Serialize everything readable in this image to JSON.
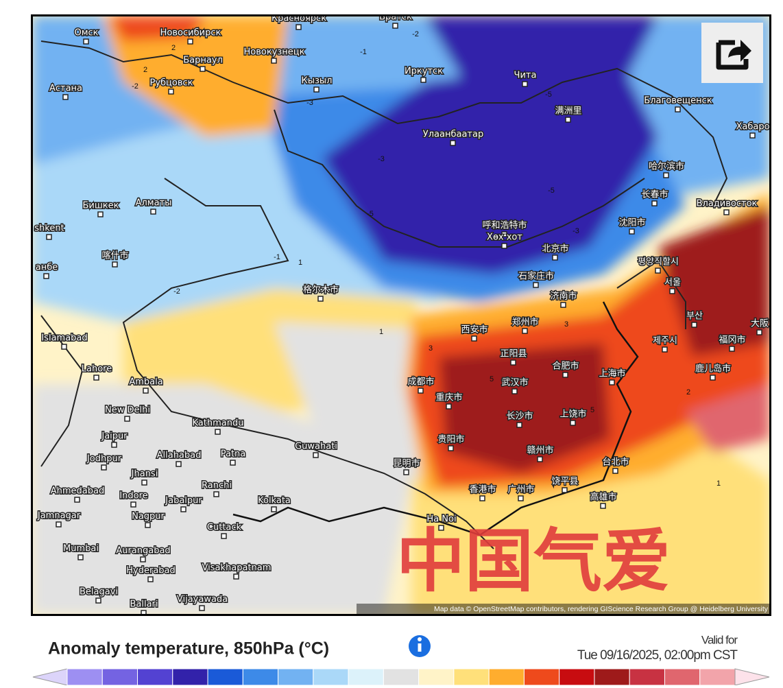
{
  "map": {
    "labels": [
      "Омск",
      "Новосибирск",
      "Красноярск",
      "Братск",
      "Барнаул",
      "Новокузнецк",
      "Иркутск",
      "Чита",
      "Астана",
      "Рубцовск",
      "Кызыл",
      "Благовещенск",
      "满洲里",
      "Улаанбаатар",
      "Хабаро",
      "哈尔滨市",
      "长春市",
      "Бишкек",
      "Алматы",
      "Владивосток",
      "shkent",
      "呼和浩特市",
      "Хөх хот",
      "沈阳市",
      "北京市",
      "喀什市",
      "анбе",
      "평양직할시",
      "石家庄市",
      "서울",
      "格尔木市",
      "济南市",
      "西安市",
      "郑州市",
      "부산",
      "大阪",
      "Islamabad",
      "제주시",
      "福冈市",
      "正阳县",
      "合肥市",
      "Lahore",
      "成都市",
      "武汉市",
      "上海市",
      "鹿儿岛市",
      "Ambala",
      "重庆市",
      "New Delhi",
      "长沙市",
      "上饶市",
      "Kathmandu",
      "贵阳市",
      "Jaipur",
      "Guwahati",
      "Allahabad",
      "Patna",
      "Jodhpur",
      "赣州市",
      "昆明市",
      "台北市",
      "Jhansi",
      "Ranchi",
      "广州市",
      "香港市",
      "饶平县",
      "Ahmedabad",
      "Indore",
      "Jabalpur",
      "Kolkata",
      "高雄市",
      "Jamnagar",
      "Nagpur",
      "Ha Noi",
      "Cuttack",
      "Mumbai",
      "Aurangabad",
      "Hyderabad",
      "Visakhapatnam",
      "Belagavi",
      "Vijayawada",
      "Ballari"
    ],
    "contour_labels": [
      -2,
      -1,
      2,
      -3,
      -2,
      -5,
      -5,
      -3,
      -1,
      1,
      -2,
      -5,
      -3,
      3,
      5,
      5,
      2,
      1,
      1,
      3,
      2
    ],
    "attribution": "Map data © OpenStreetMap contributors, rendering GIScience Research Group @ Heidelberg University",
    "watermark": "中国气爱"
  },
  "legend": {
    "title": "Anomaly temperature, 850hPa (°C)",
    "valid_label": "Valid for",
    "valid_time": "Tue 09/16/2025, 02:00pm CST",
    "low_color": "#dcd4fa",
    "high_color": "#fde2ea",
    "colors": [
      "#9d8ff2",
      "#7463e2",
      "#5342d2",
      "#3222aa",
      "#1a5ad8",
      "#3d8ae8",
      "#72b2f2",
      "#aad8f8",
      "#dcf2fa",
      "#e2e2e2",
      "#fff3c8",
      "#ffe07a",
      "#ffad2e",
      "#ee4a1c",
      "#c80c10",
      "#9e1a1a",
      "#c83242",
      "#e0666e",
      "#f2a4aa"
    ]
  }
}
